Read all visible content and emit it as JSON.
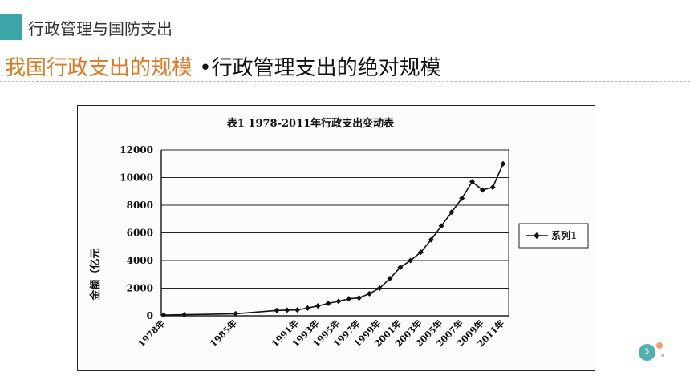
{
  "header": {
    "section_title": "行政管理与国防支出",
    "title_orange": "我国行政支出的规模",
    "title_dark": "•行政管理支出的绝对规模"
  },
  "page_number": "5",
  "colors": {
    "accent_teal": "#3aa6a8",
    "title_orange": "#e07820",
    "page_circle": "#4fb0b4"
  },
  "chart_data": {
    "type": "line",
    "title": "表1   1978-2011年行政支出变动表",
    "ylabel": "金额（亿元",
    "ylim": [
      0,
      12000
    ],
    "yticks": [
      "12000",
      "10000",
      "8000",
      "6000",
      "4000",
      "2000",
      "0"
    ],
    "grid": true,
    "legend_position": "right",
    "x_tick_labels": [
      "1978年",
      "1985年",
      "1991年",
      "1993年",
      "1995年",
      "1997年",
      "1999年",
      "2001年",
      "2003年",
      "2005年",
      "2007年",
      "2009年",
      "2011年"
    ],
    "categories": [
      "1978",
      "1980",
      "1985",
      "1989",
      "1990",
      "1991",
      "1992",
      "1993",
      "1994",
      "1995",
      "1996",
      "1997",
      "1998",
      "1999",
      "2000",
      "2001",
      "2002",
      "2003",
      "2004",
      "2005",
      "2006",
      "2007",
      "2008",
      "2009",
      "2010",
      "2011"
    ],
    "series": [
      {
        "name": "系列1",
        "values": [
          60,
          80,
          150,
          390,
          410,
          430,
          560,
          720,
          900,
          1050,
          1230,
          1300,
          1600,
          2000,
          2700,
          3500,
          4000,
          4600,
          5500,
          6500,
          7500,
          8500,
          9700,
          9100,
          9300,
          11000
        ]
      }
    ]
  }
}
